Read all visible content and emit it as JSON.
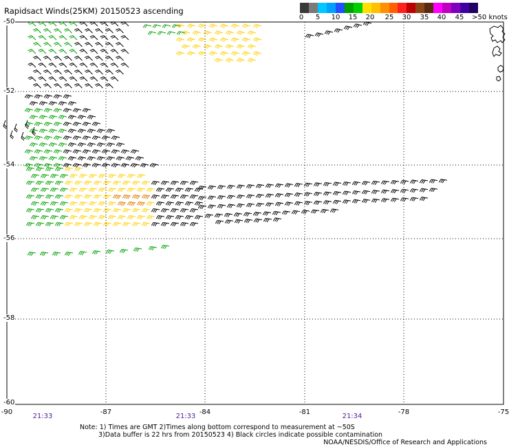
{
  "title": "Rapidsact Winds(25KM) 20150523 ascending",
  "legend": {
    "labels": [
      "0",
      "5",
      "10",
      "15",
      "20",
      "25",
      "30",
      "35",
      "40",
      "45",
      ">50 knots"
    ],
    "colors": [
      "#3a3a3a",
      "#7a7a7a",
      "#00c8ff",
      "#00a0ff",
      "#2050ff",
      "#00a000",
      "#00d000",
      "#ffe000",
      "#ffc000",
      "#ff9000",
      "#ff6000",
      "#ff2020",
      "#c00000",
      "#8b4513",
      "#5a2a10",
      "#ff00ff",
      "#c000c0",
      "#8000c0",
      "#4000a0",
      "#200060"
    ]
  },
  "axes": {
    "lat_labels": [
      "-50",
      "-52",
      "-54",
      "-56",
      "-58",
      "-60"
    ],
    "lon_labels": [
      "-90",
      "-87",
      "-84",
      "-81",
      "-78",
      "-75"
    ]
  },
  "time_labels": [
    "21:33",
    "21:33",
    "21:34"
  ],
  "notes": {
    "line1": "Note: 1) Times are GMT 2)Times along bottom correspond to measurement at ~50S",
    "line2": "3)Data buffer is 22 hrs from 20150523 4) Black circles indicate possible contamination",
    "credit": "NOAA/NESDIS/Office of Research and Applications"
  },
  "colors": {
    "black_barbs": "#000000",
    "green_barbs": "#00a000",
    "yellow_barbs": "#ffd000",
    "orange_barbs": "#e08000",
    "red_barbs": "#d03000",
    "grid": "#000000"
  }
}
